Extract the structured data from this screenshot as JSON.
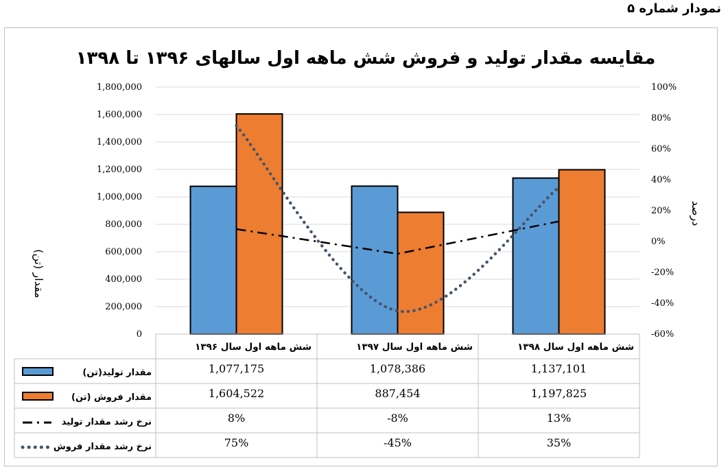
{
  "caption": "نمودار شماره ۵",
  "chart_data": {
    "type": "bar",
    "title": "مقایسه مقدار تولید و فروش شش ماهه اول سالهای ۱۳۹۶ تا ۱۳۹۸",
    "ylabel": "مقدار (تن)",
    "y2label": "درصد",
    "ylim": [
      0,
      1800000
    ],
    "y2lim": [
      -0.6,
      1.0
    ],
    "y_ticks": [
      "0",
      "200,000",
      "400,000",
      "600,000",
      "800,000",
      "1,000,000",
      "1,200,000",
      "1,400,000",
      "1,600,000",
      "1,800,000"
    ],
    "y2_ticks": [
      "-60%",
      "-40%",
      "-20%",
      "0%",
      "20%",
      "40%",
      "60%",
      "80%",
      "100%"
    ],
    "grid": true,
    "legend": "data-table",
    "categories": [
      "شش ماهه اول سال ۱۳۹۶",
      "شش ماهه اول سال ۱۳۹۷",
      "شش ماهه اول سال ۱۳۹۸"
    ],
    "series": [
      {
        "name": "مقدار تولید(تن)",
        "type": "bar",
        "axis": "left",
        "color": "#5b9bd5",
        "values": [
          1077175,
          1078386,
          1137101
        ],
        "labels": [
          "1,077,175",
          "1,078,386",
          "1,137,101"
        ]
      },
      {
        "name": "مقدار فروش (تن)",
        "type": "bar",
        "axis": "left",
        "color": "#ed7d31",
        "values": [
          1604522,
          887454,
          1197825
        ],
        "labels": [
          "1,604,522",
          "887,454",
          "1,197,825"
        ]
      },
      {
        "name": "نرخ رشد مقدار تولید",
        "type": "line",
        "style": "dash-dot",
        "axis": "right",
        "color": "#000000",
        "values": [
          0.08,
          -0.08,
          0.13
        ],
        "labels": [
          "8%",
          "-8%",
          "13%"
        ]
      },
      {
        "name": "نرخ رشد مقدار فروش",
        "type": "line",
        "style": "dotted",
        "axis": "right",
        "color": "#44546a",
        "values": [
          0.75,
          -0.45,
          0.35
        ],
        "labels": [
          "75%",
          "-45%",
          "35%"
        ]
      }
    ]
  }
}
